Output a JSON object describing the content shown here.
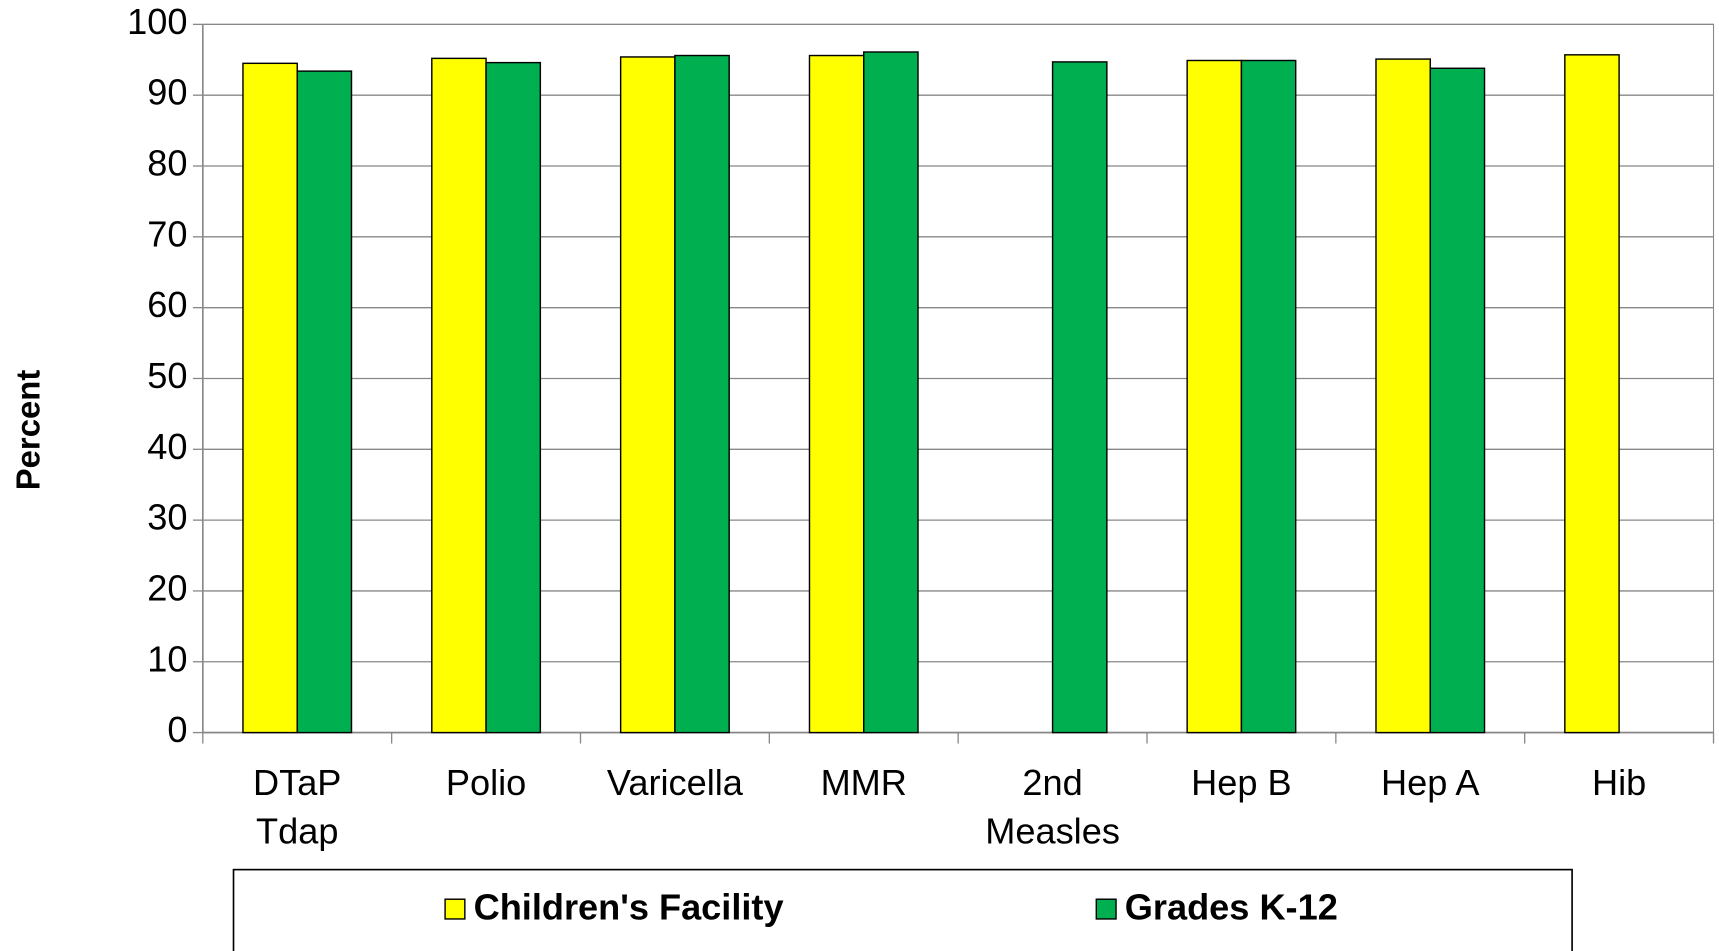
{
  "chart_data": {
    "type": "bar",
    "y_label": "Percent",
    "categories": [
      "DTaP\nTdap",
      "Polio",
      "Varicella",
      "MMR",
      "2nd\nMeasles",
      "Hep B",
      "Hep A",
      "Hib"
    ],
    "series": [
      {
        "name": "Children's Facility",
        "color": "#ffff00",
        "values": [
          94.5,
          95.2,
          95.4,
          95.6,
          null,
          94.9,
          95.1,
          95.7
        ]
      },
      {
        "name": "Grades K-12",
        "color": "#00b050",
        "values": [
          93.4,
          94.6,
          95.6,
          96.1,
          94.7,
          94.9,
          93.8,
          null
        ]
      }
    ],
    "ylim": [
      0,
      100
    ],
    "yticks": [
      0,
      10,
      20,
      30,
      40,
      50,
      60,
      70,
      80,
      90,
      100
    ],
    "grid": true
  }
}
